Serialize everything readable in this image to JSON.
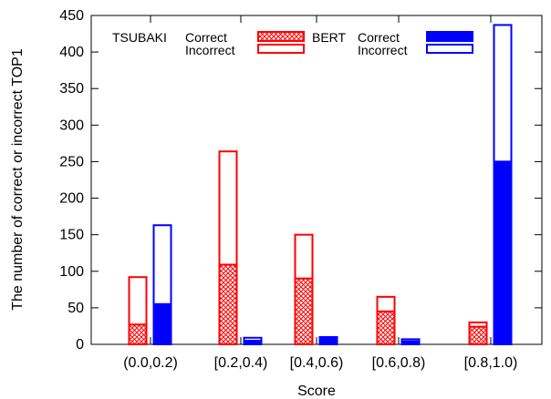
{
  "chart_data": {
    "type": "bar",
    "xlabel": "Score",
    "ylabel": "The number of correct or incorrect TOP1",
    "ylim": [
      0,
      450
    ],
    "yticks": [
      0,
      50,
      100,
      150,
      200,
      250,
      300,
      350,
      400,
      450
    ],
    "categories": [
      "(0.0,0.2)",
      "[0.2,0.4)",
      "[0.4,0.6)",
      "[0.6,0.8)",
      "[0.8,1.0)"
    ],
    "stacked": true,
    "groups": [
      {
        "name": "TSUBAKI",
        "color": "#ff0000",
        "correct_label": "Correct",
        "incorrect_label": "Incorrect",
        "correct": [
          27,
          109,
          90,
          45,
          24
        ],
        "incorrect": [
          65,
          155,
          60,
          20,
          6
        ],
        "correct_style": "crosshatch",
        "incorrect_style": "outline"
      },
      {
        "name": "BERT",
        "color": "#0000ff",
        "correct_label": "Correct",
        "incorrect_label": "Incorrect",
        "correct": [
          55,
          5,
          8,
          4,
          250
        ],
        "incorrect": [
          108,
          4,
          2,
          3,
          187
        ],
        "correct_style": "solid",
        "incorrect_style": "outline"
      }
    ],
    "legend_position": "top"
  }
}
